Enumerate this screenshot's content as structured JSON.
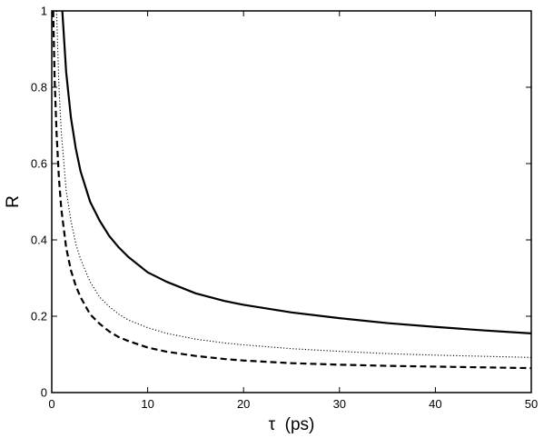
{
  "chart_data": {
    "type": "line",
    "title": "",
    "xlabel": "τ  (ps)",
    "ylabel": "R",
    "xlim": [
      0,
      50
    ],
    "ylim": [
      0,
      1
    ],
    "xticks": [
      0,
      10,
      20,
      30,
      40,
      50
    ],
    "yticks": [
      0,
      0.2,
      0.4,
      0.6,
      0.8,
      1
    ],
    "xtick_labels": [
      "0",
      "10",
      "20",
      "30",
      "40",
      "50"
    ],
    "ytick_labels": [
      "0",
      "0.2",
      "0.4",
      "0.6",
      "0.8",
      "1"
    ],
    "grid": false,
    "legend": "none",
    "series": [
      {
        "style": "solid",
        "x": [
          1.1,
          1.5,
          2,
          2.5,
          3,
          4,
          5,
          6,
          7,
          8,
          10,
          12,
          15,
          18,
          20,
          25,
          30,
          35,
          40,
          45,
          50
        ],
        "y": [
          1.0,
          0.84,
          0.72,
          0.64,
          0.58,
          0.5,
          0.45,
          0.41,
          0.38,
          0.355,
          0.315,
          0.29,
          0.26,
          0.24,
          0.23,
          0.21,
          0.195,
          0.182,
          0.172,
          0.163,
          0.155
        ]
      },
      {
        "style": "dotted",
        "x": [
          0.5,
          0.75,
          1,
          1.5,
          2,
          2.5,
          3,
          4,
          5,
          6,
          7,
          8,
          10,
          12,
          15,
          18,
          20,
          25,
          30,
          35,
          40,
          45,
          50
        ],
        "y": [
          1.0,
          0.8,
          0.68,
          0.53,
          0.45,
          0.39,
          0.35,
          0.29,
          0.25,
          0.225,
          0.205,
          0.19,
          0.17,
          0.155,
          0.14,
          0.13,
          0.125,
          0.115,
          0.108,
          0.102,
          0.098,
          0.095,
          0.092
        ]
      },
      {
        "style": "dashed",
        "x": [
          0.15,
          0.3,
          0.5,
          0.75,
          1,
          1.5,
          2,
          2.5,
          3,
          4,
          5,
          6,
          7,
          8,
          10,
          12,
          15,
          18,
          20,
          25,
          30,
          35,
          40,
          45,
          50
        ],
        "y": [
          1.0,
          0.82,
          0.68,
          0.56,
          0.48,
          0.38,
          0.32,
          0.28,
          0.25,
          0.205,
          0.18,
          0.16,
          0.145,
          0.135,
          0.118,
          0.107,
          0.096,
          0.088,
          0.084,
          0.077,
          0.073,
          0.07,
          0.068,
          0.066,
          0.064
        ]
      }
    ]
  }
}
